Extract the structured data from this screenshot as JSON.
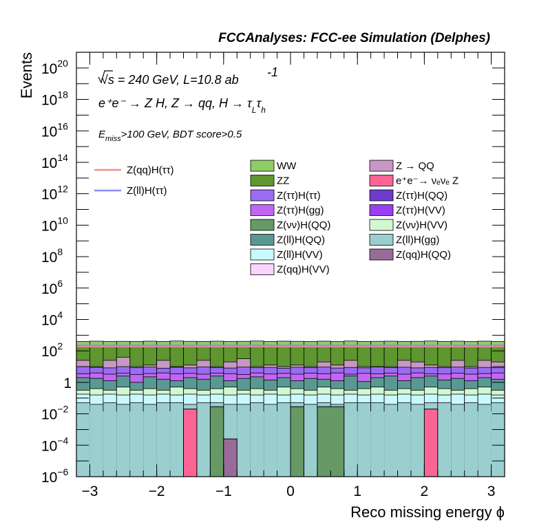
{
  "chart_data": {
    "type": "bar",
    "header": "FCCAnalyses: FCC-ee Simulation (Delphes)",
    "labels": {
      "energy": "√s = 240 GeV, L=10.8 ab",
      "energy_exp": "-1",
      "process": "e⁺e⁻ → Z H, Z → qq, H → τ",
      "sub_L": "L",
      "tau": "τ",
      "sub_h": "h",
      "cut_E": "E",
      "cut_sub": "miss",
      "cut_rest": ">100 GeV, BDT score>0.5"
    },
    "xlabel": "Reco missing energy ϕ",
    "ylabel": "Events",
    "xlim": [
      -3.2,
      3.2
    ],
    "ylim_log10": [
      -6,
      21
    ],
    "x_tick_labels": [
      "−3",
      "−2",
      "−1",
      "0",
      "1",
      "2",
      "3"
    ],
    "x_tick_values": [
      -3,
      -2,
      -1,
      0,
      1,
      2,
      3
    ],
    "y_tick_labels": [
      {
        "base": "10",
        "exp": "−6"
      },
      {
        "base": "10",
        "exp": "−4"
      },
      {
        "base": "10",
        "exp": "−2"
      },
      {
        "base": "1",
        "exp": ""
      },
      {
        "base": "10",
        "exp": "2"
      },
      {
        "base": "10",
        "exp": "4"
      },
      {
        "base": "10",
        "exp": "6"
      },
      {
        "base": "10",
        "exp": "8"
      },
      {
        "base": "10",
        "exp": "10"
      },
      {
        "base": "10",
        "exp": "12"
      },
      {
        "base": "10",
        "exp": "14"
      },
      {
        "base": "10",
        "exp": "16"
      },
      {
        "base": "10",
        "exp": "18"
      },
      {
        "base": "10",
        "exp": "20"
      }
    ],
    "y_tick_values": [
      -6,
      -4,
      -2,
      0,
      2,
      4,
      6,
      8,
      10,
      12,
      14,
      16,
      18,
      20
    ],
    "n_bins": 32,
    "bin_width": 0.2,
    "stack_log10_top": [
      {
        "name": "WW",
        "color": "#8ecc65",
        "values": [
          2.6,
          2.62,
          2.6,
          2.61,
          2.6,
          2.62,
          2.6,
          2.63,
          2.61,
          2.6,
          2.62,
          2.6,
          2.61,
          2.63,
          2.6,
          2.62,
          2.61,
          2.6,
          2.62,
          2.6,
          2.63,
          2.6,
          2.61,
          2.62,
          2.6,
          2.61,
          2.63,
          2.6,
          2.62,
          2.6,
          2.62,
          2.6
        ]
      },
      {
        "name": "ZZ",
        "color": "#5e962f",
        "values": [
          2.28,
          2.3,
          2.28,
          2.29,
          2.28,
          2.3,
          2.27,
          2.3,
          2.29,
          2.28,
          2.31,
          2.28,
          2.29,
          2.3,
          2.28,
          2.3,
          2.29,
          2.28,
          2.3,
          2.28,
          2.31,
          2.28,
          2.29,
          2.3,
          2.28,
          2.29,
          2.3,
          2.28,
          2.3,
          2.28,
          2.3,
          2.28
        ]
      },
      {
        "name": "Z → QQ",
        "color": "#c897c6",
        "values": [
          1.4,
          1.0,
          1.4,
          1.6,
          1.0,
          1.1,
          1.4,
          1.0,
          1.1,
          1.4,
          1.0,
          1.3,
          1.5,
          1.0,
          1.1,
          1.0,
          1.1,
          1.0,
          1.3,
          1.1,
          1.4,
          1.0,
          1.0,
          1.0,
          1.4,
          1.3,
          1.1,
          1.0,
          1.4,
          1.0,
          1.4,
          1.3
        ]
      },
      {
        "name": "Z(ττ)H(ττ)",
        "color": "#9a6cf2",
        "values": [
          1.0,
          0.95,
          0.92,
          1.0,
          0.93,
          0.97,
          0.9,
          0.96,
          0.92,
          0.98,
          0.94,
          0.91,
          0.97,
          0.93,
          0.95,
          0.9,
          0.96,
          0.93,
          0.97,
          0.91,
          0.95,
          0.92,
          0.98,
          0.94,
          0.96,
          0.92,
          0.95,
          0.93,
          0.97,
          0.91,
          0.95,
          0.93
        ]
      },
      {
        "name": "Z(ττ)H(gg)",
        "color": "#c466f5",
        "values": [
          0.55,
          0.6,
          0.52,
          0.58,
          0.5,
          0.56,
          0.6,
          0.54,
          0.57,
          0.52,
          0.59,
          0.55,
          0.5,
          0.6,
          0.53,
          0.57,
          0.52,
          0.59,
          0.55,
          0.6,
          0.52,
          0.57,
          0.54,
          0.58,
          0.52,
          0.6,
          0.55,
          0.53,
          0.58,
          0.52,
          0.56,
          0.6
        ]
      },
      {
        "name": "Z(ll)H(QQ)",
        "color": "#5a9993",
        "values": [
          0.3,
          0.25,
          0.1,
          0.4,
          0.0,
          0.35,
          0.2,
          0.1,
          0.3,
          0.2,
          0.4,
          0.1,
          0.25,
          0.35,
          0.15,
          0.3,
          0.1,
          0.25,
          0.2,
          0.1,
          0.4,
          0.05,
          0.3,
          0.4,
          0.1,
          0.3,
          0.4,
          0.15,
          0.25,
          0.1,
          0.3,
          0.2
        ]
      },
      {
        "name": "Z(νν)H(VV)",
        "color": "#d1f8d1",
        "values": [
          -0.5,
          -0.4,
          -0.5,
          -0.3,
          -0.5,
          -0.4,
          -0.5,
          -0.3,
          -0.4,
          -0.5,
          -0.4,
          -0.3,
          -0.5,
          -0.4,
          -0.5,
          -0.3,
          -0.4,
          -0.5,
          -0.3,
          -0.4,
          -0.5,
          -0.4,
          -0.3,
          -0.5,
          -0.4,
          -0.5,
          -0.3,
          -0.4,
          -0.5,
          -0.4,
          -0.3,
          -0.5
        ]
      },
      {
        "name": "Z(ll)H(VV)",
        "color": "#c9f8fd",
        "values": [
          -0.75,
          -0.8,
          -0.75,
          -0.8,
          -0.75,
          -0.8,
          -0.75,
          -0.8,
          -0.75,
          -0.8,
          -0.75,
          -0.8,
          -0.75,
          -0.8,
          -0.75,
          -0.8,
          -0.75,
          -0.8,
          -0.75,
          -0.8,
          -0.75,
          -0.8,
          -0.75,
          -0.8,
          -0.75,
          -0.8,
          -0.75,
          -0.8,
          -0.75,
          -0.8,
          -0.75,
          -0.8
        ]
      },
      {
        "name": "Z(ll)H(gg)",
        "color": "#9bcfcf",
        "values": [
          -1.3,
          -1.4,
          -1.3,
          -1.4,
          -1.3,
          -1.4,
          -1.3,
          -1.3,
          -1.4,
          -1.3,
          -1.3,
          -1.4,
          -1.4,
          -1.3,
          -1.4,
          -1.3,
          -1.3,
          -1.4,
          -1.3,
          -1.4,
          -1.3,
          -1.3,
          -1.3,
          -1.4,
          -1.3,
          -1.4,
          -1.3,
          -1.3,
          -1.4,
          -1.3,
          -1.4,
          -1.3
        ]
      }
    ],
    "ll_gg_floor": [
      -1.35,
      -1.85,
      -1.85,
      -1.85,
      -1.85,
      -1.85,
      -1.85,
      -1.85,
      -1.85,
      -1.85,
      -1.85,
      -1.85,
      -1.85,
      -1.85,
      -1.85,
      -1.85,
      -1.85,
      -1.85,
      -1.85,
      -1.85,
      -1.85,
      -1.85,
      -1.85,
      -1.85,
      -1.85,
      -1.85,
      -1.85,
      -1.85,
      -1.85,
      -1.85,
      -1.85,
      -1.35
    ],
    "isolated_bars": [
      {
        "name": "e⁺e⁻→ νₑνₑ Z",
        "color": "#fc6495",
        "x0": -1.6,
        "x1": -1.4,
        "log10": -1.7
      },
      {
        "name": "e⁺e⁻→ νₑνₑ Z",
        "color": "#fc6495",
        "x0": 2.0,
        "x1": 2.2,
        "log10": -1.7
      },
      {
        "name": "Z(νν)H(QQ)",
        "color": "#669966",
        "x0": -1.2,
        "x1": -1.0,
        "log10": -1.55
      },
      {
        "name": "Z(νν)H(QQ)",
        "color": "#669966",
        "x0": 0.0,
        "x1": 0.2,
        "log10": -1.55
      },
      {
        "name": "Z(νν)H(QQ)",
        "color": "#669966",
        "x0": 0.4,
        "x1": 0.8,
        "log10": -1.55
      },
      {
        "name": "Z(qq)H(QQ)",
        "color": "#986c99",
        "x0": -1.0,
        "x1": -0.8,
        "log10": -3.6
      }
    ],
    "signal_lines": [
      {
        "name": "Z(qq)H(ττ)",
        "color": "#f78c8c",
        "log10": 2.28
      },
      {
        "name": "Z(ll)H(ττ)",
        "color": "#8c8cf7",
        "log10": 2.35
      }
    ],
    "legend_placement": "top",
    "legend_lines": [
      {
        "name": "Z(qq)H(ττ)",
        "color": "#f78c8c"
      },
      {
        "name": "Z(ll)H(ττ)",
        "color": "#8c8cf7"
      }
    ],
    "legend_boxes_col1": [
      {
        "name": "WW",
        "color": "#8ecc65"
      },
      {
        "name": "ZZ",
        "color": "#5e962f"
      },
      {
        "name": "Z(ττ)H(ττ)",
        "color": "#9a6cf2"
      },
      {
        "name": "Z(ττ)H(gg)",
        "color": "#c466f5"
      },
      {
        "name": "Z(νν)H(QQ)",
        "color": "#669966"
      },
      {
        "name": "Z(ll)H(QQ)",
        "color": "#5a9993"
      },
      {
        "name": "Z(ll)H(VV)",
        "color": "#c9f8fd"
      },
      {
        "name": "Z(qq)H(VV)",
        "color": "#fdd3fd"
      }
    ],
    "legend_boxes_col2": [
      {
        "name": "Z → QQ",
        "color": "#c897c6"
      },
      {
        "name": "e⁺e⁻→ νₑνₑ Z",
        "color": "#fc6495"
      },
      {
        "name": "Z(ττ)H(QQ)",
        "color": "#6c3ccf"
      },
      {
        "name": "Z(ττ)H(VV)",
        "color": "#9b3ef2"
      },
      {
        "name": "Z(νν)H(VV)",
        "color": "#d1f8d1"
      },
      {
        "name": "Z(ll)H(gg)",
        "color": "#9bcfcf"
      },
      {
        "name": "Z(qq)H(QQ)",
        "color": "#986c99"
      }
    ]
  }
}
